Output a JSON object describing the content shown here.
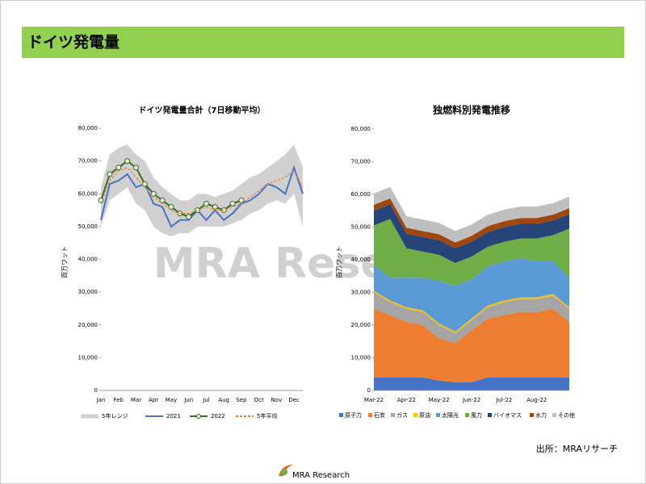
{
  "header": {
    "title": "ドイツ発電量"
  },
  "watermark": "MRA Research",
  "chart_data": [
    {
      "type": "line",
      "title": "ドイツ発電量合計（7日移動平均）",
      "ylabel": "百万ワット",
      "categories": [
        "Jan",
        null,
        "Feb",
        null,
        "Mar",
        null,
        "Apr",
        null,
        "May",
        null,
        "Jun",
        null,
        "Jul",
        null,
        "Aug",
        null,
        "Sep",
        null,
        "Oct",
        null,
        "Nov",
        null,
        "Dec",
        null
      ],
      "ylim": [
        0,
        80000
      ],
      "yticks": [
        0,
        {
          "value": 10000,
          "label": "10,000"
        },
        {
          "value": 20000,
          "label": "20,000"
        },
        {
          "value": 30000,
          "label": "30,000"
        },
        {
          "value": 40000,
          "label": "40,000"
        },
        {
          "value": 50000,
          "label": "50,000"
        },
        {
          "value": 60000,
          "label": "60,000"
        },
        {
          "value": 70000,
          "label": "70,000"
        },
        {
          "value": 80000,
          "label": "80,000"
        }
      ],
      "series": [
        {
          "name": "5年レンジ",
          "color": "#d0d0d0",
          "values": [
            62000,
            72000,
            74000,
            75000,
            72000,
            70000,
            65000,
            62000,
            60000,
            58000,
            58000,
            60000,
            60000,
            59000,
            60000,
            61000,
            63000,
            65000,
            66000,
            68000,
            70000,
            72000,
            75000,
            68000
          ],
          "low": [
            50000,
            58000,
            60000,
            62000,
            57000,
            55000,
            50000,
            48000,
            47000,
            48000,
            48000,
            50000,
            50000,
            50000,
            50000,
            51000,
            52000,
            54000,
            55000,
            57000,
            58000,
            57000,
            60000,
            50000
          ]
        },
        {
          "name": "2021",
          "color": "#4472c4",
          "values": [
            52000,
            63000,
            64000,
            66000,
            62000,
            63000,
            57000,
            56000,
            50000,
            52000,
            52000,
            55000,
            52000,
            55000,
            52000,
            54000,
            57000,
            58000,
            60000,
            63000,
            62000,
            60000,
            68000,
            60000
          ]
        },
        {
          "name": "2022",
          "color": "#3d6b1f",
          "values": [
            58000,
            66000,
            68000,
            70000,
            68000,
            63000,
            60000,
            58000,
            56000,
            54000,
            53000,
            55000,
            57000,
            56000,
            55000,
            57000,
            58000,
            null,
            null,
            null,
            null,
            null,
            null,
            null
          ]
        },
        {
          "name": "5年平均",
          "color": "#ed7d31",
          "values": [
            57000,
            64000,
            67000,
            68000,
            65000,
            62000,
            59000,
            57000,
            55000,
            54000,
            54000,
            55000,
            56000,
            55000,
            55000,
            56000,
            57000,
            59000,
            61000,
            63000,
            64000,
            65000,
            67000,
            62000
          ]
        }
      ]
    },
    {
      "type": "stacked_area",
      "title": "独燃料別発電推移",
      "ylabel": "百万ワット",
      "categories": [
        "Mar-22",
        null,
        "Apr-22",
        null,
        "May-22",
        null,
        "Jun-22",
        null,
        "Jul-22",
        null,
        "Aug-22",
        null,
        null
      ],
      "ylim": [
        0,
        80000
      ],
      "yticks": [
        0,
        {
          "value": 10000,
          "label": "10,000"
        },
        {
          "value": 20000,
          "label": "20,000"
        },
        {
          "value": 30000,
          "label": "30,000"
        },
        {
          "value": 40000,
          "label": "40,000"
        },
        {
          "value": 50000,
          "label": "50,000"
        },
        {
          "value": 60000,
          "label": "60,000"
        },
        {
          "value": 70000,
          "label": "70,000"
        },
        {
          "value": 80000,
          "label": "80,000"
        }
      ],
      "series": [
        {
          "name": "原子力",
          "color": "#4472c4",
          "values": [
            4000,
            4000,
            4000,
            4000,
            3000,
            2500,
            2500,
            4000,
            4000,
            4000,
            4000,
            4000,
            4000
          ]
        },
        {
          "name": "石炭",
          "color": "#ed7d31",
          "values": [
            21000,
            19000,
            17000,
            16000,
            13000,
            12000,
            16000,
            18000,
            19000,
            20000,
            20000,
            21000,
            17000
          ]
        },
        {
          "name": "ガス",
          "color": "#a5a5a5",
          "values": [
            5000,
            4000,
            4000,
            4000,
            4000,
            3000,
            3000,
            3500,
            4000,
            4000,
            4000,
            4000,
            4000
          ]
        },
        {
          "name": "原油",
          "color": "#ffc000",
          "values": [
            500,
            500,
            500,
            500,
            500,
            500,
            500,
            500,
            500,
            500,
            500,
            500,
            500
          ]
        },
        {
          "name": "太陽光",
          "color": "#5b9bd5",
          "values": [
            8000,
            7000,
            9000,
            10000,
            13000,
            14000,
            12000,
            12000,
            12000,
            12000,
            11000,
            10000,
            9000
          ]
        },
        {
          "name": "風力",
          "color": "#70ad47",
          "values": [
            12000,
            18000,
            9000,
            8000,
            8000,
            7000,
            7000,
            6000,
            6000,
            6000,
            7000,
            8000,
            15000
          ]
        },
        {
          "name": "バイオマス",
          "color": "#264478",
          "values": [
            4500,
            4500,
            4500,
            4500,
            4500,
            4500,
            4500,
            4500,
            4500,
            4500,
            4500,
            4500,
            4500
          ]
        },
        {
          "name": "水力",
          "color": "#9e480e",
          "values": [
            1800,
            1800,
            1800,
            1800,
            1800,
            1800,
            1800,
            1800,
            1800,
            1800,
            1800,
            1800,
            1800
          ]
        },
        {
          "name": "その他",
          "color": "#bfbfbf",
          "values": [
            3500,
            3500,
            3500,
            3500,
            3500,
            3500,
            3500,
            3500,
            3500,
            3500,
            3500,
            3500,
            3500
          ]
        }
      ]
    }
  ],
  "source": "出所：MRAリサーチ",
  "logo": "MRA Research"
}
